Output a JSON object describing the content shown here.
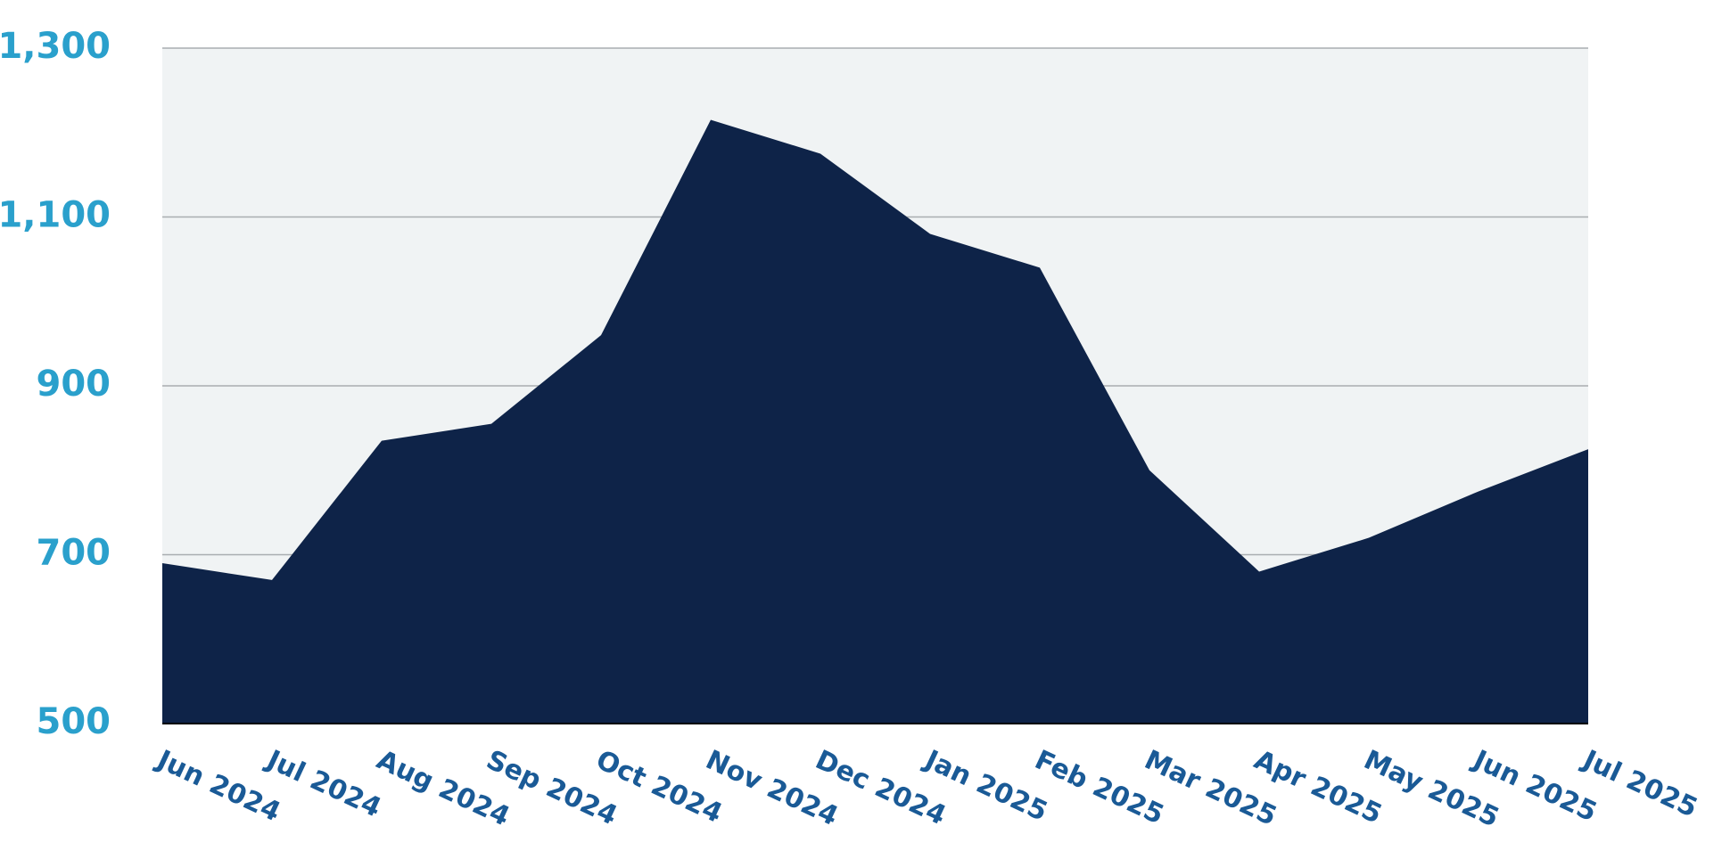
{
  "chart_data": {
    "type": "area",
    "categories": [
      "Jun 2024",
      "Jul 2024",
      "Aug 2024",
      "Sep 2024",
      "Oct 2024",
      "Nov 2024",
      "Dec 2024",
      "Jan 2025",
      "Feb 2025",
      "Mar 2025",
      "Apr 2025",
      "May 2025",
      "Jun 2025",
      "Jul 2025"
    ],
    "values": [
      690,
      670,
      835,
      855,
      960,
      1215,
      1175,
      1080,
      1040,
      800,
      680,
      720,
      775,
      825
    ],
    "color": "#0e2348",
    "ylim": [
      500,
      1300
    ],
    "yticks": [
      500,
      700,
      900,
      {
        "value": 1100,
        "label": "1,100"
      },
      {
        "value": 1300,
        "label": "1,300"
      }
    ],
    "grid": true
  }
}
